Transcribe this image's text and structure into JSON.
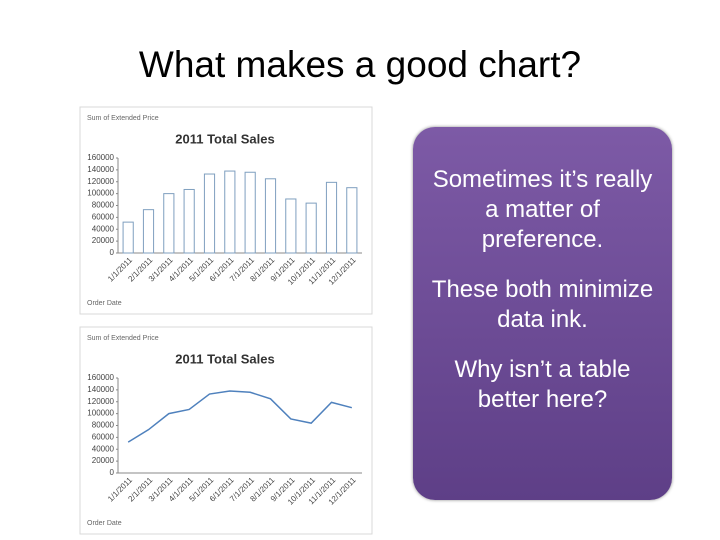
{
  "title": "What makes a good chart?",
  "chart_data": [
    {
      "type": "bar",
      "label": "Sum of Extended Price",
      "title": "2011 Total Sales",
      "x_label": "Order Date",
      "categories": [
        "1/1/2011",
        "2/1/2011",
        "3/1/2011",
        "4/1/2011",
        "5/1/2011",
        "6/1/2011",
        "7/1/2011",
        "8/1/2011",
        "9/1/2011",
        "10/1/2011",
        "11/1/2011",
        "12/1/2011"
      ],
      "values": [
        52000,
        73000,
        100000,
        107000,
        133000,
        138000,
        136000,
        125000,
        91000,
        84000,
        119000,
        110000
      ],
      "color": "#7f9fbf",
      "ylim": [
        0,
        160000
      ],
      "yticks": [
        0,
        20000,
        40000,
        60000,
        80000,
        100000,
        120000,
        140000,
        160000
      ],
      "grid": false
    },
    {
      "type": "line",
      "label": "Sum of Extended Price",
      "title": "2011 Total Sales",
      "x_label": "Order Date",
      "categories": [
        "1/1/2011",
        "2/1/2011",
        "3/1/2011",
        "4/1/2011",
        "5/1/2011",
        "6/1/2011",
        "7/1/2011",
        "8/1/2011",
        "9/1/2011",
        "10/1/2011",
        "11/1/2011",
        "12/1/2011"
      ],
      "values": [
        52000,
        73000,
        100000,
        107000,
        133000,
        138000,
        136000,
        125000,
        91000,
        84000,
        119000,
        110000
      ],
      "color": "#4f81bd",
      "ylim": [
        0,
        160000
      ],
      "yticks": [
        0,
        20000,
        40000,
        60000,
        80000,
        100000,
        120000,
        140000,
        160000
      ],
      "grid": false
    }
  ],
  "callout": [
    "Sometimes it’s really a matter of preference.",
    "These both minimize data ink.",
    "Why isn’t a table better here?"
  ]
}
